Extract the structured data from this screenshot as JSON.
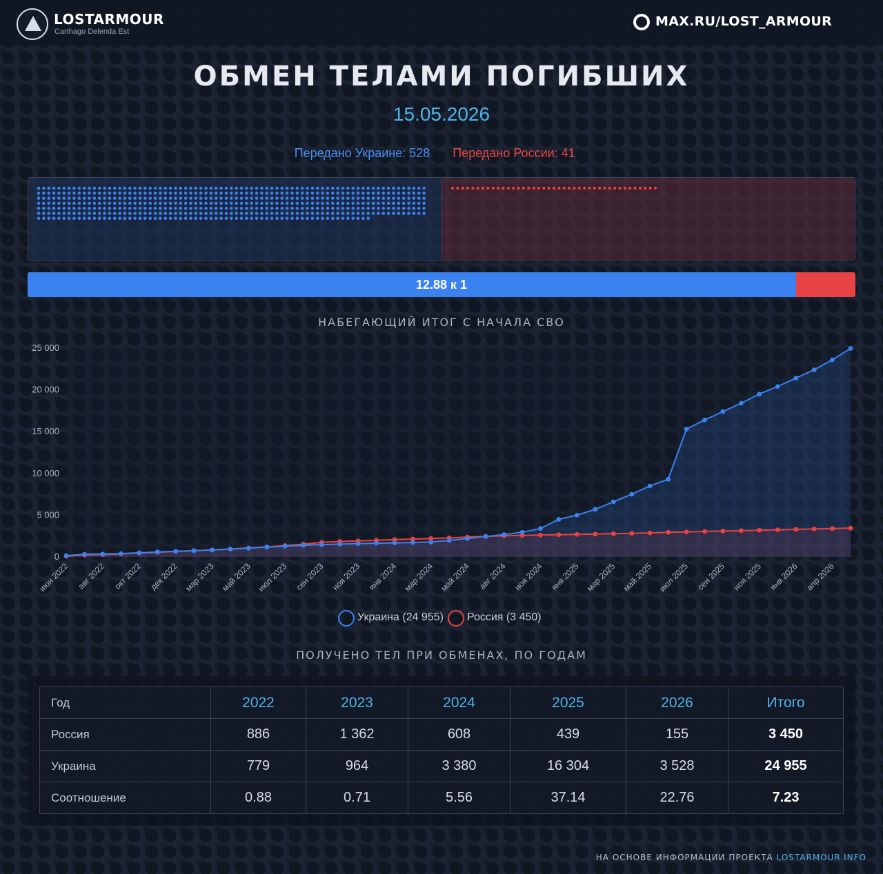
{
  "header": {
    "brand": "LOSTARMOUR",
    "tagline": "Carthago Delenda Est",
    "channel": "MAX.RU/LOST_ARMOUR"
  },
  "title": "ОБМЕН ТЕЛАМИ ПОГИБШИХ",
  "date": "15.05.2026",
  "transfer": {
    "ua_label": "Передано Украине: 528",
    "ru_label": "Передано России: 41",
    "ua_count": 528,
    "ru_count": 41,
    "ua_color": "#3b82f0",
    "ru_color": "#e84344"
  },
  "ratio": {
    "label": "12.88 к 1",
    "ua_share": 0.928
  },
  "chart_title": "НАБЕГАЮЩИЙ ИТОГ С НАЧАЛА СВО",
  "chart_data": {
    "type": "line",
    "title": "НАБЕГАЮЩИЙ ИТОГ С НАЧАЛА СВО",
    "ylim": [
      0,
      25000
    ],
    "yticks": [
      "0",
      "5 000",
      "10 000",
      "15 000",
      "20 000",
      "25 000"
    ],
    "ytick_values": [
      0,
      5000,
      10000,
      15000,
      20000,
      25000
    ],
    "x": [
      "июн 2022",
      "июл 2022",
      "авг 2022",
      "сен 2022",
      "окт 2022",
      "ноя 2022",
      "дек 2022",
      "янв 2023",
      "мар 2023",
      "апр 2023",
      "май 2023",
      "июн 2023",
      "июл 2023",
      "авг 2023",
      "сен 2023",
      "окт 2023",
      "ноя 2023",
      "дек 2023",
      "янв 2024",
      "фев 2024",
      "мар 2024",
      "апр 2024",
      "май 2024",
      "июн 2024",
      "авг 2024",
      "сен 2024",
      "ноя 2024",
      "дек 2024",
      "янв 2025",
      "фев 2025",
      "мар 2025",
      "апр 2025",
      "май 2025",
      "июн 2025",
      "июл 2025",
      "авг 2025",
      "сен 2025",
      "окт 2025",
      "ноя 2025",
      "дек 2025",
      "янв 2026",
      "фев 2026",
      "апр 2026",
      "май 2026"
    ],
    "xtick_labels": [
      "июн 2022",
      "авг 2022",
      "окт 2022",
      "дек 2022",
      "мар 2023",
      "май 2023",
      "июл 2023",
      "сен 2023",
      "ноя 2023",
      "янв 2024",
      "мар 2024",
      "май 2024",
      "авг 2024",
      "ноя 2024",
      "янв 2025",
      "мар 2025",
      "май 2025",
      "июл 2025",
      "сен 2025",
      "ноя 2025",
      "янв 2026",
      "апр 2026"
    ],
    "xtick_index": [
      0,
      2,
      4,
      6,
      8,
      10,
      12,
      14,
      16,
      18,
      20,
      22,
      24,
      26,
      28,
      30,
      32,
      34,
      36,
      38,
      40,
      42
    ],
    "legend_position": "bottom",
    "grid": false,
    "series": [
      {
        "name": "Украина (24 955)",
        "color": "#3b82f0",
        "values": [
          160,
          320,
          350,
          400,
          500,
          600,
          680,
          750,
          830,
          930,
          1050,
          1180,
          1290,
          1390,
          1470,
          1540,
          1590,
          1640,
          1680,
          1720,
          1780,
          1980,
          2200,
          2450,
          2680,
          2950,
          3400,
          4500,
          5000,
          5700,
          6600,
          7500,
          8500,
          9300,
          15300,
          16400,
          17400,
          18400,
          19500,
          20400,
          21400,
          22400,
          23600,
          24955
        ]
      },
      {
        "name": "Россия (3 450)",
        "color": "#e84344",
        "values": [
          90,
          230,
          290,
          360,
          460,
          560,
          660,
          750,
          850,
          950,
          1080,
          1200,
          1360,
          1520,
          1740,
          1850,
          1920,
          1990,
          2080,
          2140,
          2210,
          2280,
          2380,
          2470,
          2540,
          2580,
          2620,
          2660,
          2700,
          2740,
          2780,
          2830,
          2880,
          2950,
          3000,
          3050,
          3100,
          3150,
          3200,
          3250,
          3300,
          3350,
          3400,
          3450
        ]
      }
    ]
  },
  "legend": [
    {
      "label": "Украина (24 955)",
      "color": "#3b82f0"
    },
    {
      "label": "Россия (3 450)",
      "color": "#e84344"
    }
  ],
  "table_title": "ПОЛУЧЕНО ТЕЛ ПРИ ОБМЕНАХ, ПО ГОДАМ",
  "table": {
    "header": [
      "Год",
      "2022",
      "2023",
      "2024",
      "2025",
      "2026",
      "Итого"
    ],
    "rows": [
      [
        "Россия",
        "886",
        "1 362",
        "608",
        "439",
        "155",
        "3 450"
      ],
      [
        "Украина",
        "779",
        "964",
        "3 380",
        "16 304",
        "3 528",
        "24 955"
      ],
      [
        "Соотношение",
        "0.88",
        "0.71",
        "5.56",
        "37.14",
        "22.76",
        "7.23"
      ]
    ]
  },
  "footer": {
    "text": "НА ОСНОВЕ ИНФОРМАЦИИ ПРОЕКТА ",
    "link": "LOSTARMOUR.INFO"
  }
}
